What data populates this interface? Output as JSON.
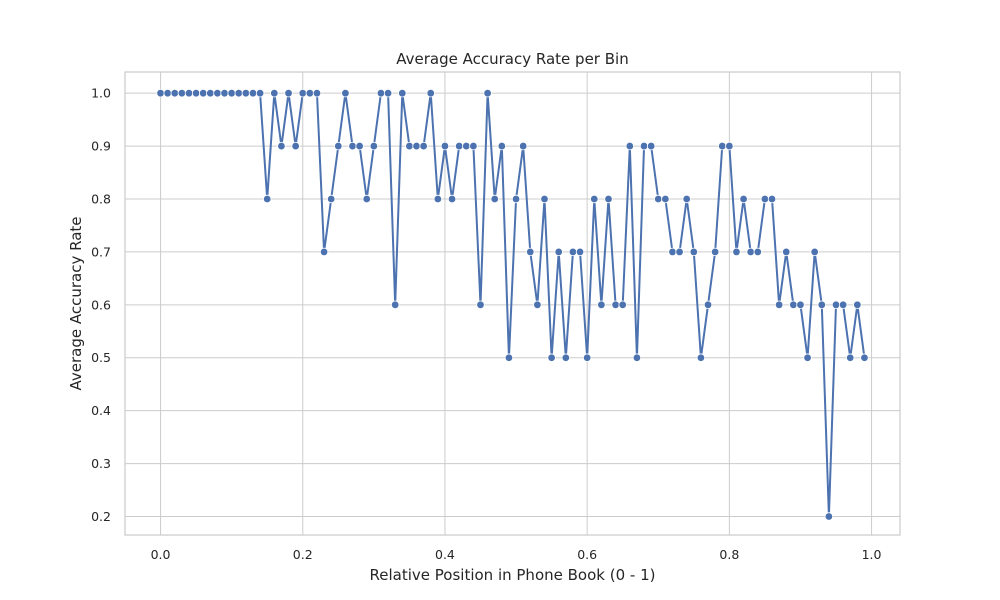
{
  "chart_data": {
    "type": "line",
    "title": "Average Accuracy Rate per Bin",
    "xlabel": "Relative Position in Phone Book (0 - 1)",
    "ylabel": "Average Accuracy Rate",
    "xlim": [
      -0.05,
      1.04
    ],
    "ylim": [
      0.165,
      1.04
    ],
    "xticks": [
      0.0,
      0.2,
      0.4,
      0.6,
      0.8,
      1.0
    ],
    "xtick_labels": [
      "0.0",
      "0.2",
      "0.4",
      "0.6",
      "0.8",
      "1.0"
    ],
    "yticks": [
      0.2,
      0.3,
      0.4,
      0.5,
      0.6,
      0.7,
      0.8,
      0.9,
      1.0
    ],
    "ytick_labels": [
      "0.2",
      "0.3",
      "0.4",
      "0.5",
      "0.6",
      "0.7",
      "0.8",
      "0.9",
      "1.0"
    ],
    "grid": true,
    "marker": "circle",
    "color": "#4c72b0",
    "x": [
      0.0,
      0.01,
      0.02,
      0.03,
      0.04,
      0.05,
      0.06,
      0.07,
      0.08,
      0.09,
      0.1,
      0.11,
      0.12,
      0.13,
      0.14,
      0.15,
      0.16,
      0.17,
      0.18,
      0.19,
      0.2,
      0.21,
      0.22,
      0.23,
      0.24,
      0.25,
      0.26,
      0.27,
      0.28,
      0.29,
      0.3,
      0.31,
      0.32,
      0.33,
      0.34,
      0.35,
      0.36,
      0.37,
      0.38,
      0.39,
      0.4,
      0.41,
      0.42,
      0.43,
      0.44,
      0.45,
      0.46,
      0.47,
      0.48,
      0.49,
      0.5,
      0.51,
      0.52,
      0.53,
      0.54,
      0.55,
      0.56,
      0.57,
      0.58,
      0.59,
      0.6,
      0.61,
      0.62,
      0.63,
      0.64,
      0.65,
      0.66,
      0.67,
      0.68,
      0.69,
      0.7,
      0.71,
      0.72,
      0.73,
      0.74,
      0.75,
      0.76,
      0.77,
      0.78,
      0.79,
      0.8,
      0.81,
      0.82,
      0.83,
      0.84,
      0.85,
      0.86,
      0.87,
      0.88,
      0.89,
      0.9,
      0.91,
      0.92,
      0.93,
      0.94,
      0.95,
      0.96,
      0.97,
      0.98,
      0.99
    ],
    "y": [
      1.0,
      1.0,
      1.0,
      1.0,
      1.0,
      1.0,
      1.0,
      1.0,
      1.0,
      1.0,
      1.0,
      1.0,
      1.0,
      1.0,
      1.0,
      0.8,
      1.0,
      0.9,
      1.0,
      0.9,
      1.0,
      1.0,
      1.0,
      0.7,
      0.8,
      0.9,
      1.0,
      0.9,
      0.9,
      0.8,
      0.9,
      1.0,
      1.0,
      0.6,
      1.0,
      0.9,
      0.9,
      0.9,
      1.0,
      0.8,
      0.9,
      0.8,
      0.9,
      0.9,
      0.9,
      0.6,
      1.0,
      0.8,
      0.9,
      0.5,
      0.8,
      0.9,
      0.7,
      0.6,
      0.8,
      0.5,
      0.7,
      0.5,
      0.7,
      0.7,
      0.5,
      0.8,
      0.6,
      0.8,
      0.6,
      0.6,
      0.9,
      0.5,
      0.9,
      0.9,
      0.8,
      0.8,
      0.7,
      0.7,
      0.8,
      0.7,
      0.5,
      0.6,
      0.7,
      0.9,
      0.9,
      0.7,
      0.8,
      0.7,
      0.7,
      0.8,
      0.8,
      0.6,
      0.7,
      0.6,
      0.6,
      0.5,
      0.7,
      0.6,
      0.2,
      0.6,
      0.6,
      0.5,
      0.6,
      0.5
    ]
  }
}
